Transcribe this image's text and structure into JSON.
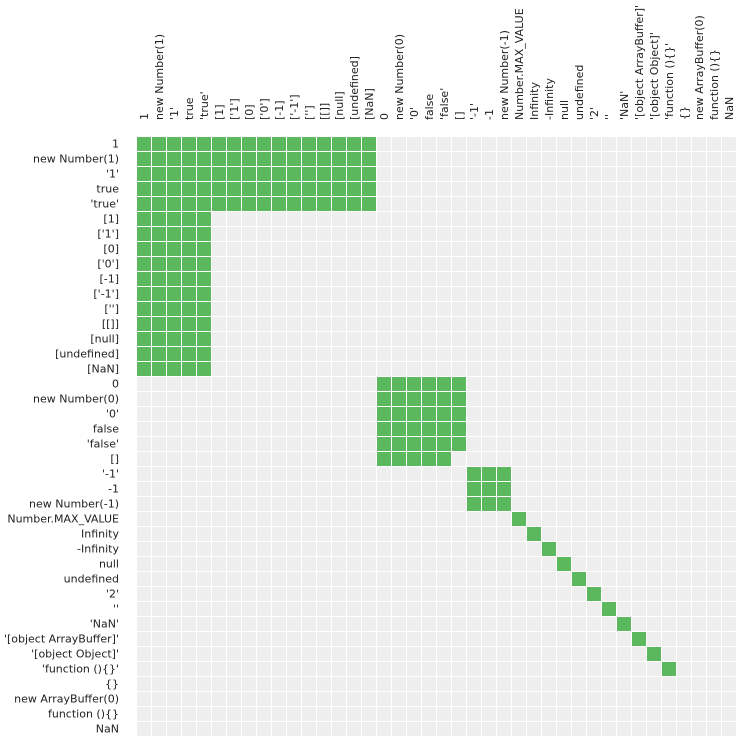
{
  "chart_data": {
    "type": "heatmap",
    "title": "",
    "colors": {
      "equal": "#5cb85c",
      "not_equal": "#eeeeee"
    },
    "row_labels": [
      "1",
      "new Number(1)",
      "'1'",
      "true",
      "'true'",
      "[1]",
      "['1']",
      "[0]",
      "['0']",
      "[-1]",
      "['-1']",
      "['']",
      "[[]]",
      "[null]",
      "[undefined]",
      "[NaN]",
      "0",
      "new Number(0)",
      "'0'",
      "false",
      "'false'",
      "[]",
      "'-1'",
      "-1",
      "new Number(-1)",
      "Number.MAX_VALUE",
      "Infinity",
      "-Infinity",
      "null",
      "undefined",
      "'2'",
      "''",
      "'NaN'",
      "'[object ArrayBuffer]'",
      "'[object Object]'",
      "'function (){}'",
      "{}",
      "new ArrayBuffer(0)",
      "function (){}",
      "NaN"
    ],
    "col_labels": [
      "1",
      "new Number(1)",
      "'1'",
      "true",
      "'true'",
      "[1]",
      "['1']",
      "[0]",
      "['0']",
      "[-1]",
      "['-1']",
      "['']",
      "[[]]",
      "[null]",
      "[undefined]",
      "[NaN]",
      "0",
      "new Number(0)",
      "'0'",
      "false",
      "'false'",
      "[]",
      "'-1'",
      "-1",
      "new Number(-1)",
      "Number.MAX_VALUE",
      "Infinity",
      "-Infinity",
      "null",
      "undefined",
      "'2'",
      "''",
      "'NaN'",
      "'[object ArrayBuffer]'",
      "'[object Object]'",
      "'function (){}'",
      "{}",
      "new ArrayBuffer(0)",
      "function (){}",
      "NaN"
    ],
    "equal_blocks": [
      {
        "rows": [
          0,
          4
        ],
        "cols": [
          0,
          15
        ]
      },
      {
        "rows": [
          5,
          15
        ],
        "cols": [
          0,
          4
        ]
      },
      {
        "rows": [
          16,
          20
        ],
        "cols": [
          16,
          21
        ]
      },
      {
        "rows": [
          21,
          21
        ],
        "cols": [
          16,
          20
        ]
      },
      {
        "rows": [
          22,
          24
        ],
        "cols": [
          22,
          24
        ]
      },
      {
        "rows": [
          25,
          25
        ],
        "cols": [
          25,
          25
        ]
      },
      {
        "rows": [
          26,
          26
        ],
        "cols": [
          26,
          26
        ]
      },
      {
        "rows": [
          27,
          27
        ],
        "cols": [
          27,
          27
        ]
      },
      {
        "rows": [
          28,
          28
        ],
        "cols": [
          28,
          28
        ]
      },
      {
        "rows": [
          29,
          29
        ],
        "cols": [
          29,
          29
        ]
      },
      {
        "rows": [
          30,
          30
        ],
        "cols": [
          30,
          30
        ]
      },
      {
        "rows": [
          31,
          31
        ],
        "cols": [
          31,
          31
        ]
      },
      {
        "rows": [
          32,
          32
        ],
        "cols": [
          32,
          32
        ]
      },
      {
        "rows": [
          33,
          33
        ],
        "cols": [
          33,
          33
        ]
      },
      {
        "rows": [
          34,
          34
        ],
        "cols": [
          34,
          34
        ]
      },
      {
        "rows": [
          35,
          35
        ],
        "cols": [
          35,
          35
        ]
      }
    ]
  }
}
